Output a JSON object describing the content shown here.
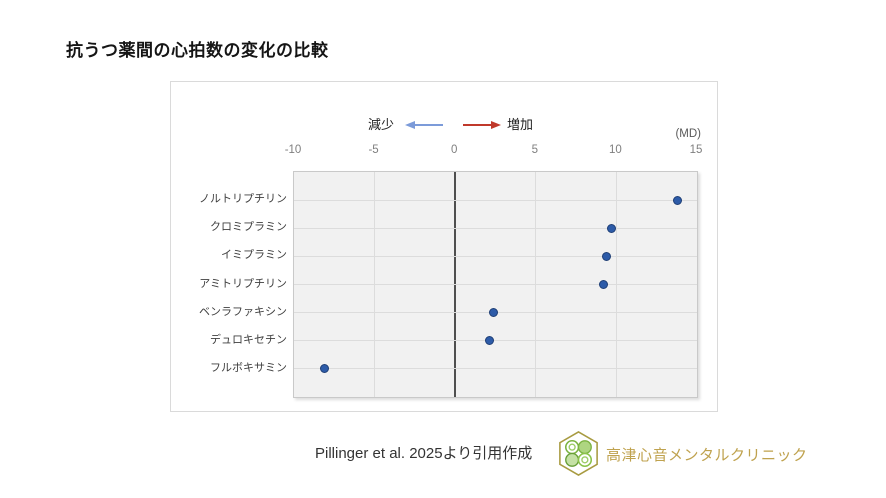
{
  "page": {
    "title": "抗うつ薬間の心拍数の変化の比較",
    "source_note": "Pillinger et al. 2025より引用作成",
    "clinic_name": "高津心音メンタルクリニック"
  },
  "legend": {
    "decrease_label": "減少",
    "increase_label": "増加",
    "decrease_arrow_color": "#7c9bd9",
    "increase_arrow_color": "#c0392b"
  },
  "icons": {
    "decrease_arrow": "left-arrow-icon",
    "increase_arrow": "right-arrow-icon",
    "logo": "clinic-logo-icon"
  },
  "chart_data": {
    "type": "scatter",
    "subtype": "horizontal-dot-plot",
    "title": "抗うつ薬間の心拍数の変化の比較",
    "unit_label": "(MD)",
    "categories": [
      "ノルトリプチリン",
      "クロミプラミン",
      "イミプラミン",
      "アミトリプチリン",
      "ベンラファキシン",
      "デュロキセチン",
      "フルボキサミン"
    ],
    "values": [
      13.8,
      9.7,
      9.4,
      9.2,
      2.4,
      2.1,
      -8.1
    ],
    "xlim": [
      -10,
      15
    ],
    "xticks": [
      -10,
      -5,
      0,
      5,
      10,
      15
    ],
    "grid": true,
    "zero_line": true,
    "marker_color": "#2d5ba8",
    "marker_border_color": "#1f3f76",
    "plot_background": "#f1f1f1"
  }
}
